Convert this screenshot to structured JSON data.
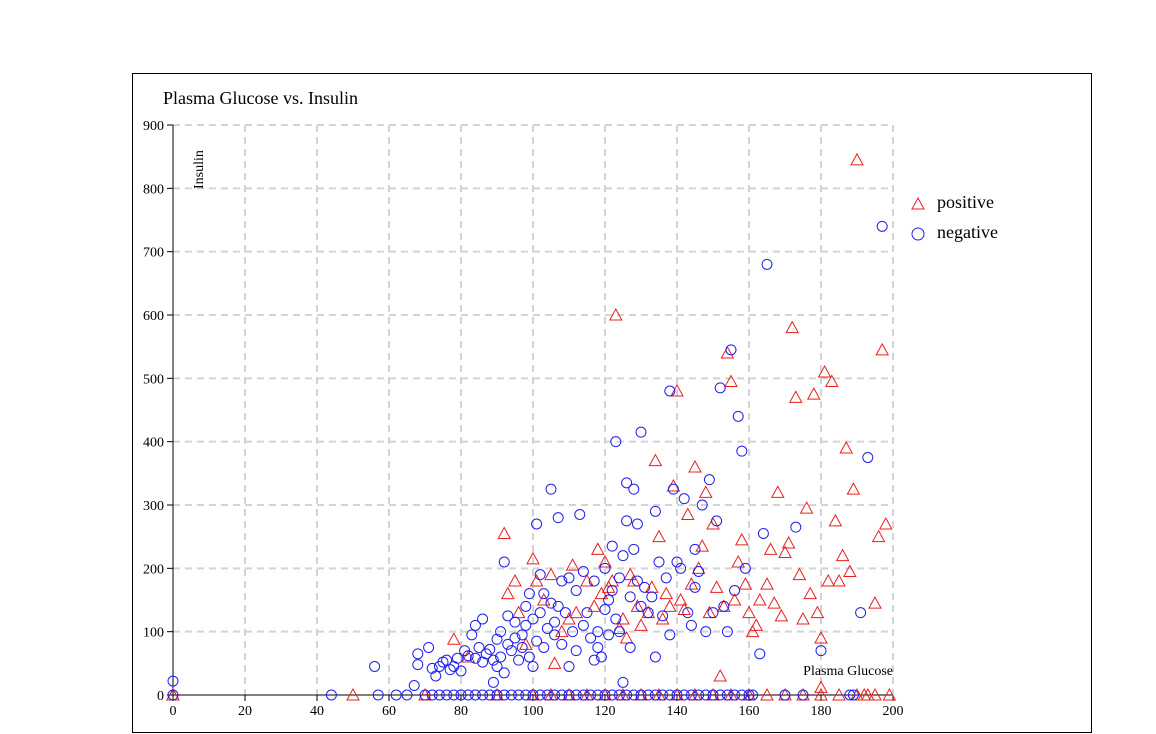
{
  "chart_data": {
    "type": "scatter",
    "title": "Plasma Glucose vs. Insulin",
    "xlabel": "Plasma Glucose",
    "ylabel": "Insulin",
    "xlim": [
      0,
      200
    ],
    "ylim": [
      0,
      900
    ],
    "x_ticks": [
      "0",
      "20",
      "40",
      "60",
      "80",
      "100",
      "120",
      "140",
      "160",
      "180",
      "200"
    ],
    "y_ticks": [
      "0",
      "100",
      "200",
      "300",
      "400",
      "500",
      "600",
      "700",
      "800",
      "900"
    ],
    "grid": true,
    "legend_position": "right",
    "series": [
      {
        "name": "positive",
        "marker": "triangle",
        "color": "#e8201e",
        "points": [
          [
            0,
            0
          ],
          [
            78,
            88
          ],
          [
            82,
            60
          ],
          [
            92,
            255
          ],
          [
            93,
            160
          ],
          [
            95,
            180
          ],
          [
            96,
            130
          ],
          [
            98,
            80
          ],
          [
            100,
            215
          ],
          [
            101,
            180
          ],
          [
            103,
            150
          ],
          [
            105,
            190
          ],
          [
            106,
            50
          ],
          [
            108,
            100
          ],
          [
            110,
            120
          ],
          [
            111,
            205
          ],
          [
            112,
            130
          ],
          [
            115,
            180
          ],
          [
            117,
            140
          ],
          [
            118,
            230
          ],
          [
            119,
            160
          ],
          [
            120,
            210
          ],
          [
            121,
            170
          ],
          [
            122,
            180
          ],
          [
            123,
            600
          ],
          [
            124,
            105
          ],
          [
            125,
            120
          ],
          [
            126,
            90
          ],
          [
            127,
            190
          ],
          [
            128,
            180
          ],
          [
            129,
            140
          ],
          [
            130,
            110
          ],
          [
            132,
            130
          ],
          [
            133,
            170
          ],
          [
            134,
            370
          ],
          [
            135,
            250
          ],
          [
            136,
            120
          ],
          [
            137,
            160
          ],
          [
            138,
            140
          ],
          [
            139,
            330
          ],
          [
            140,
            480
          ],
          [
            141,
            150
          ],
          [
            142,
            135
          ],
          [
            143,
            285
          ],
          [
            144,
            175
          ],
          [
            145,
            360
          ],
          [
            146,
            200
          ],
          [
            147,
            235
          ],
          [
            148,
            320
          ],
          [
            149,
            130
          ],
          [
            150,
            270
          ],
          [
            151,
            170
          ],
          [
            152,
            30
          ],
          [
            153,
            140
          ],
          [
            154,
            540
          ],
          [
            155,
            495
          ],
          [
            156,
            150
          ],
          [
            157,
            210
          ],
          [
            158,
            245
          ],
          [
            159,
            175
          ],
          [
            160,
            130
          ],
          [
            161,
            100
          ],
          [
            162,
            110
          ],
          [
            163,
            150
          ],
          [
            165,
            175
          ],
          [
            166,
            230
          ],
          [
            167,
            145
          ],
          [
            168,
            320
          ],
          [
            169,
            125
          ],
          [
            170,
            225
          ],
          [
            171,
            240
          ],
          [
            172,
            580
          ],
          [
            173,
            470
          ],
          [
            174,
            190
          ],
          [
            175,
            120
          ],
          [
            176,
            295
          ],
          [
            177,
            160
          ],
          [
            178,
            475
          ],
          [
            179,
            130
          ],
          [
            180,
            90
          ],
          [
            181,
            510
          ],
          [
            182,
            180
          ],
          [
            183,
            495
          ],
          [
            184,
            275
          ],
          [
            185,
            180
          ],
          [
            186,
            220
          ],
          [
            187,
            390
          ],
          [
            188,
            195
          ],
          [
            189,
            325
          ],
          [
            190,
            845
          ],
          [
            192,
            0
          ],
          [
            193,
            0
          ],
          [
            195,
            145
          ],
          [
            196,
            250
          ],
          [
            197,
            545
          ],
          [
            198,
            270
          ],
          [
            199,
            0
          ],
          [
            0,
            0
          ],
          [
            50,
            0
          ],
          [
            70,
            0
          ],
          [
            90,
            0
          ],
          [
            100,
            0
          ],
          [
            105,
            0
          ],
          [
            110,
            0
          ],
          [
            115,
            0
          ],
          [
            120,
            0
          ],
          [
            125,
            0
          ],
          [
            130,
            0
          ],
          [
            135,
            0
          ],
          [
            140,
            0
          ],
          [
            145,
            0
          ],
          [
            150,
            0
          ],
          [
            155,
            0
          ],
          [
            160,
            0
          ],
          [
            165,
            0
          ],
          [
            170,
            0
          ],
          [
            175,
            0
          ],
          [
            180,
            0
          ],
          [
            185,
            0
          ],
          [
            190,
            0
          ],
          [
            195,
            0
          ],
          [
            180,
            12
          ]
        ]
      },
      {
        "name": "negative",
        "marker": "circle",
        "color": "#1f1ff0",
        "points": [
          [
            0,
            0
          ],
          [
            0,
            22
          ],
          [
            44,
            0
          ],
          [
            56,
            45
          ],
          [
            57,
            0
          ],
          [
            62,
            0
          ],
          [
            65,
            0
          ],
          [
            67,
            15
          ],
          [
            68,
            65
          ],
          [
            68,
            48
          ],
          [
            71,
            75
          ],
          [
            72,
            42
          ],
          [
            73,
            30
          ],
          [
            74,
            45
          ],
          [
            75,
            52
          ],
          [
            76,
            55
          ],
          [
            77,
            40
          ],
          [
            78,
            45
          ],
          [
            79,
            58
          ],
          [
            80,
            38
          ],
          [
            81,
            70
          ],
          [
            82,
            62
          ],
          [
            83,
            95
          ],
          [
            84,
            110
          ],
          [
            84,
            58
          ],
          [
            85,
            75
          ],
          [
            86,
            120
          ],
          [
            86,
            52
          ],
          [
            87,
            65
          ],
          [
            88,
            72
          ],
          [
            89,
            55
          ],
          [
            89,
            20
          ],
          [
            90,
            88
          ],
          [
            90,
            45
          ],
          [
            91,
            100
          ],
          [
            91,
            60
          ],
          [
            92,
            210
          ],
          [
            92,
            35
          ],
          [
            93,
            125
          ],
          [
            93,
            80
          ],
          [
            94,
            70
          ],
          [
            95,
            115
          ],
          [
            95,
            90
          ],
          [
            96,
            55
          ],
          [
            97,
            75
          ],
          [
            97,
            95
          ],
          [
            98,
            110
          ],
          [
            98,
            140
          ],
          [
            99,
            160
          ],
          [
            99,
            60
          ],
          [
            100,
            45
          ],
          [
            100,
            120
          ],
          [
            101,
            270
          ],
          [
            101,
            85
          ],
          [
            102,
            130
          ],
          [
            102,
            190
          ],
          [
            103,
            160
          ],
          [
            103,
            75
          ],
          [
            104,
            105
          ],
          [
            105,
            325
          ],
          [
            105,
            145
          ],
          [
            106,
            115
          ],
          [
            106,
            95
          ],
          [
            107,
            140
          ],
          [
            107,
            280
          ],
          [
            108,
            180
          ],
          [
            108,
            80
          ],
          [
            109,
            130
          ],
          [
            110,
            185
          ],
          [
            110,
            45
          ],
          [
            111,
            100
          ],
          [
            112,
            165
          ],
          [
            112,
            70
          ],
          [
            113,
            285
          ],
          [
            114,
            195
          ],
          [
            114,
            110
          ],
          [
            115,
            130
          ],
          [
            116,
            90
          ],
          [
            117,
            180
          ],
          [
            117,
            55
          ],
          [
            118,
            100
          ],
          [
            118,
            75
          ],
          [
            119,
            60
          ],
          [
            120,
            135
          ],
          [
            120,
            200
          ],
          [
            121,
            150
          ],
          [
            121,
            95
          ],
          [
            122,
            235
          ],
          [
            122,
            165
          ],
          [
            123,
            400
          ],
          [
            123,
            120
          ],
          [
            124,
            185
          ],
          [
            124,
            100
          ],
          [
            125,
            220
          ],
          [
            125,
            20
          ],
          [
            126,
            335
          ],
          [
            126,
            275
          ],
          [
            127,
            155
          ],
          [
            127,
            75
          ],
          [
            128,
            230
          ],
          [
            128,
            325
          ],
          [
            129,
            270
          ],
          [
            129,
            180
          ],
          [
            130,
            415
          ],
          [
            130,
            140
          ],
          [
            131,
            170
          ],
          [
            132,
            130
          ],
          [
            133,
            155
          ],
          [
            134,
            290
          ],
          [
            134,
            60
          ],
          [
            135,
            210
          ],
          [
            136,
            125
          ],
          [
            137,
            185
          ],
          [
            138,
            95
          ],
          [
            138,
            480
          ],
          [
            139,
            325
          ],
          [
            140,
            210
          ],
          [
            141,
            200
          ],
          [
            142,
            310
          ],
          [
            143,
            130
          ],
          [
            144,
            110
          ],
          [
            145,
            230
          ],
          [
            145,
            170
          ],
          [
            146,
            195
          ],
          [
            147,
            300
          ],
          [
            148,
            100
          ],
          [
            149,
            340
          ],
          [
            150,
            130
          ],
          [
            151,
            275
          ],
          [
            152,
            485
          ],
          [
            153,
            140
          ],
          [
            154,
            100
          ],
          [
            155,
            545
          ],
          [
            156,
            165
          ],
          [
            157,
            440
          ],
          [
            158,
            385
          ],
          [
            159,
            200
          ],
          [
            161,
            0
          ],
          [
            163,
            65
          ],
          [
            164,
            255
          ],
          [
            165,
            680
          ],
          [
            170,
            0
          ],
          [
            173,
            265
          ],
          [
            180,
            70
          ],
          [
            188,
            0
          ],
          [
            189,
            0
          ],
          [
            193,
            375
          ],
          [
            197,
            740
          ],
          [
            191,
            130
          ],
          [
            70,
            0
          ],
          [
            72,
            0
          ],
          [
            74,
            0
          ],
          [
            76,
            0
          ],
          [
            78,
            0
          ],
          [
            80,
            0
          ],
          [
            82,
            0
          ],
          [
            84,
            0
          ],
          [
            86,
            0
          ],
          [
            88,
            0
          ],
          [
            90,
            0
          ],
          [
            92,
            0
          ],
          [
            94,
            0
          ],
          [
            96,
            0
          ],
          [
            98,
            0
          ],
          [
            100,
            0
          ],
          [
            102,
            0
          ],
          [
            104,
            0
          ],
          [
            106,
            0
          ],
          [
            108,
            0
          ],
          [
            110,
            0
          ],
          [
            112,
            0
          ],
          [
            114,
            0
          ],
          [
            116,
            0
          ],
          [
            118,
            0
          ],
          [
            120,
            0
          ],
          [
            122,
            0
          ],
          [
            124,
            0
          ],
          [
            126,
            0
          ],
          [
            128,
            0
          ],
          [
            130,
            0
          ],
          [
            132,
            0
          ],
          [
            134,
            0
          ],
          [
            136,
            0
          ],
          [
            138,
            0
          ],
          [
            140,
            0
          ],
          [
            142,
            0
          ],
          [
            144,
            0
          ],
          [
            146,
            0
          ],
          [
            148,
            0
          ],
          [
            150,
            0
          ],
          [
            152,
            0
          ],
          [
            154,
            0
          ],
          [
            156,
            0
          ],
          [
            158,
            0
          ],
          [
            160,
            0
          ],
          [
            175,
            0
          ]
        ]
      }
    ]
  }
}
